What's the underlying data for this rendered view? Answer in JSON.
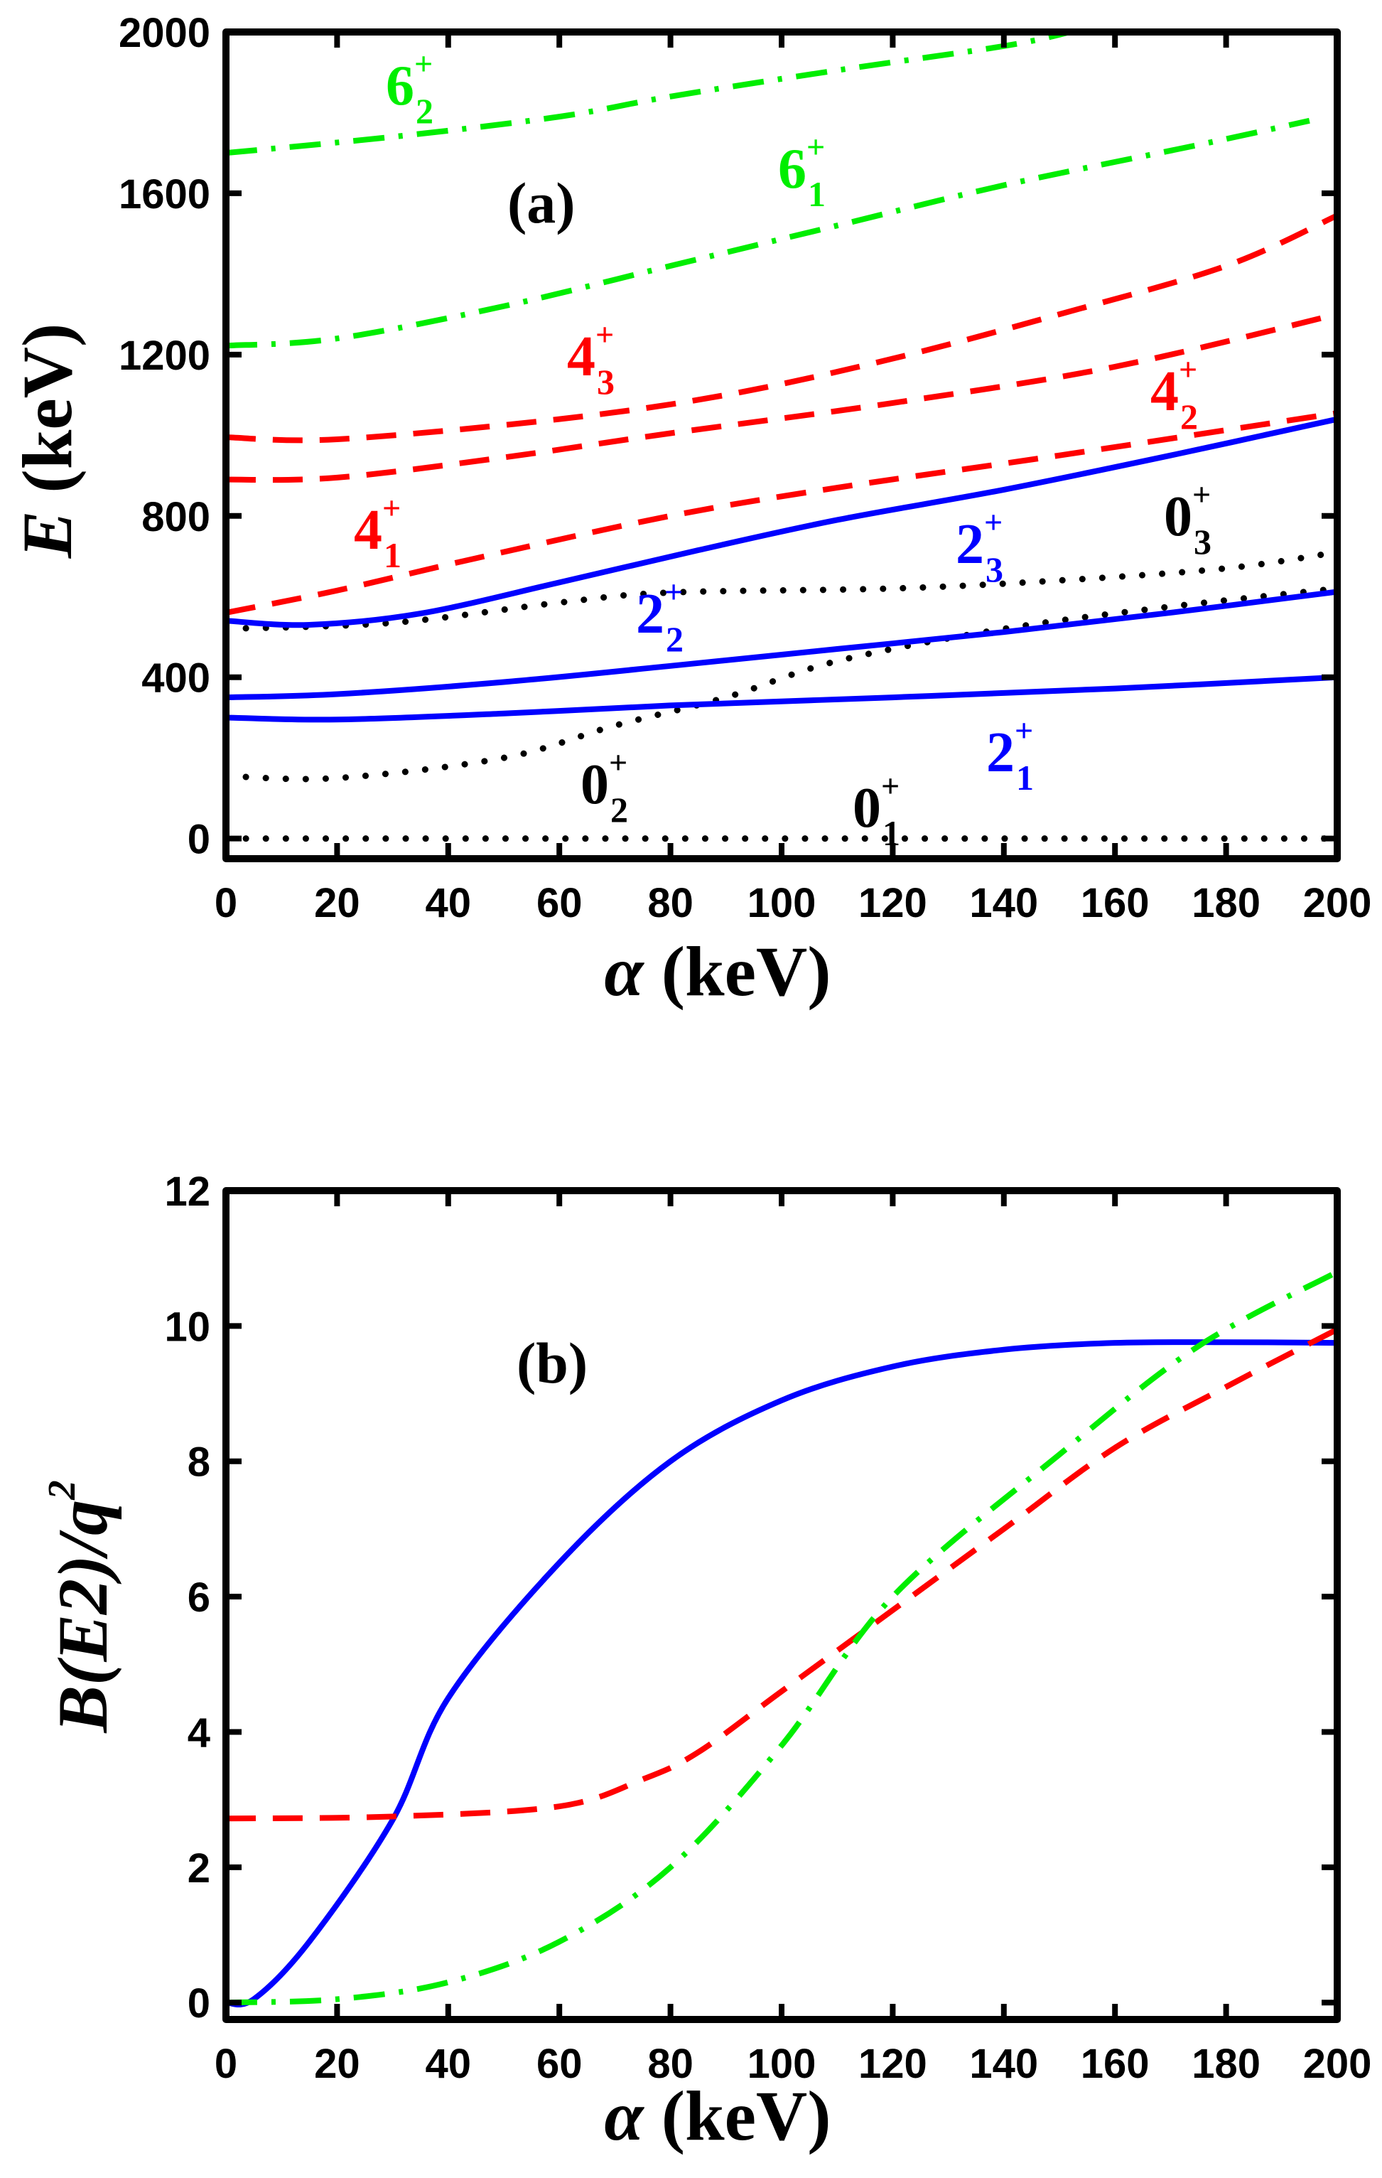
{
  "colors": {
    "blue": "#0000ff",
    "red": "#ff0000",
    "green": "#00ee00",
    "black": "#000000"
  },
  "chart_data": [
    {
      "type": "line",
      "panel_label": "(a)",
      "xlabel": {
        "symbol": "α",
        "unit": " (keV)"
      },
      "ylabel": {
        "symbol": "E",
        "unit": " (keV)"
      },
      "xlim": [
        0,
        200
      ],
      "ylim": [
        -50,
        2000
      ],
      "xticks": [
        0,
        20,
        40,
        60,
        80,
        100,
        120,
        140,
        160,
        180,
        200
      ],
      "yticks": [
        0,
        400,
        800,
        1200,
        1600,
        2000
      ],
      "grid": false,
      "series": [
        {
          "label": {
            "main": "0",
            "sub": "1",
            "sup": "+"
          },
          "color": "black",
          "style": "dotted",
          "x": [
            0,
            50,
            100,
            150,
            200
          ],
          "y": [
            0,
            0,
            0,
            0,
            0
          ]
        },
        {
          "label": {
            "main": "0",
            "sub": "2",
            "sup": "+"
          },
          "color": "black",
          "style": "dotted",
          "x": [
            0,
            20,
            50,
            70,
            90,
            110,
            140,
            170,
            200
          ],
          "y": [
            155,
            150,
            200,
            280,
            350,
            440,
            520,
            575,
            620
          ]
        },
        {
          "label": {
            "main": "0",
            "sub": "3",
            "sup": "+"
          },
          "color": "black",
          "style": "dotted",
          "x": [
            0,
            30,
            60,
            80,
            120,
            150,
            180,
            200
          ],
          "y": [
            520,
            535,
            585,
            610,
            620,
            640,
            670,
            710
          ]
        },
        {
          "label": {
            "main": "2",
            "sub": "1",
            "sup": "+"
          },
          "color": "blue",
          "style": "solid",
          "x": [
            0,
            20,
            50,
            80,
            120,
            160,
            200
          ],
          "y": [
            300,
            295,
            310,
            330,
            350,
            372,
            400
          ]
        },
        {
          "label": {
            "main": "2",
            "sub": "2",
            "sup": "+"
          },
          "color": "blue",
          "style": "solid",
          "x": [
            0,
            20,
            50,
            80,
            110,
            140,
            170,
            200
          ],
          "y": [
            350,
            358,
            388,
            428,
            470,
            512,
            560,
            612
          ]
        },
        {
          "label": {
            "main": "2",
            "sub": "3",
            "sup": "+"
          },
          "color": "blue",
          "style": "solid",
          "x": [
            0,
            15,
            35,
            60,
            85,
            110,
            140,
            170,
            200
          ],
          "y": [
            540,
            530,
            558,
            635,
            715,
            790,
            865,
            950,
            1040
          ]
        },
        {
          "label": {
            "main": "4",
            "sub": "1",
            "sup": "+"
          },
          "color": "red",
          "style": "dashed",
          "x": [
            0,
            20,
            45,
            80,
            110,
            150,
            200
          ],
          "y": [
            560,
            615,
            695,
            800,
            870,
            950,
            1055
          ]
        },
        {
          "label": {
            "main": "4",
            "sub": "2",
            "sup": "+"
          },
          "color": "red",
          "style": "dashed",
          "x": [
            0,
            20,
            50,
            80,
            120,
            160,
            200
          ],
          "y": [
            890,
            895,
            945,
            1005,
            1080,
            1170,
            1300
          ]
        },
        {
          "label": {
            "main": "4",
            "sub": "3",
            "sup": "+"
          },
          "color": "red",
          "style": "dashed",
          "x": [
            0,
            20,
            60,
            90,
            120,
            150,
            180,
            200
          ],
          "y": [
            995,
            990,
            1040,
            1100,
            1190,
            1300,
            1420,
            1545
          ]
        },
        {
          "label": {
            "main": "6",
            "sub": "1",
            "sup": "+"
          },
          "color": "green",
          "style": "dashdot",
          "x": [
            0,
            20,
            50,
            80,
            110,
            140,
            175,
            195
          ],
          "y": [
            1222,
            1240,
            1320,
            1420,
            1520,
            1620,
            1720,
            1780
          ]
        },
        {
          "label": {
            "main": "6",
            "sub": "2",
            "sup": "+"
          },
          "color": "green",
          "style": "dashdot",
          "x": [
            0,
            30,
            60,
            80,
            110,
            140,
            152
          ],
          "y": [
            1700,
            1740,
            1790,
            1840,
            1905,
            1965,
            2000
          ]
        }
      ]
    },
    {
      "type": "line",
      "panel_label": "(b)",
      "xlabel": {
        "symbol": "α",
        "unit": " (keV)"
      },
      "ylabel": {
        "text": "B(E2)/q",
        "sup": "2"
      },
      "xlim": [
        0,
        200
      ],
      "ylim": [
        -0.25,
        12
      ],
      "xticks": [
        0,
        20,
        40,
        60,
        80,
        100,
        120,
        140,
        160,
        180,
        200
      ],
      "yticks": [
        0,
        2,
        4,
        6,
        8,
        10,
        12
      ],
      "grid": false,
      "series": [
        {
          "color": "blue",
          "style": "solid",
          "x": [
            0,
            5,
            15,
            30,
            40,
            60,
            80,
            100,
            120,
            140,
            160,
            180,
            200
          ],
          "y": [
            0,
            0.05,
            0.9,
            2.7,
            4.5,
            6.5,
            8.0,
            8.9,
            9.4,
            9.65,
            9.75,
            9.76,
            9.75
          ]
        },
        {
          "color": "red",
          "style": "dashed",
          "x": [
            0,
            30,
            60,
            75,
            85,
            100,
            120,
            140,
            160,
            180,
            200
          ],
          "y": [
            2.72,
            2.75,
            2.9,
            3.3,
            3.7,
            4.6,
            5.8,
            7.0,
            8.2,
            9.1,
            9.95
          ]
        },
        {
          "color": "green",
          "style": "dashdot",
          "x": [
            0,
            20,
            40,
            60,
            80,
            100,
            120,
            150,
            175,
            200
          ],
          "y": [
            0,
            0.05,
            0.3,
            0.9,
            2.0,
            3.8,
            6.0,
            8.1,
            9.7,
            10.8
          ]
        }
      ]
    }
  ]
}
